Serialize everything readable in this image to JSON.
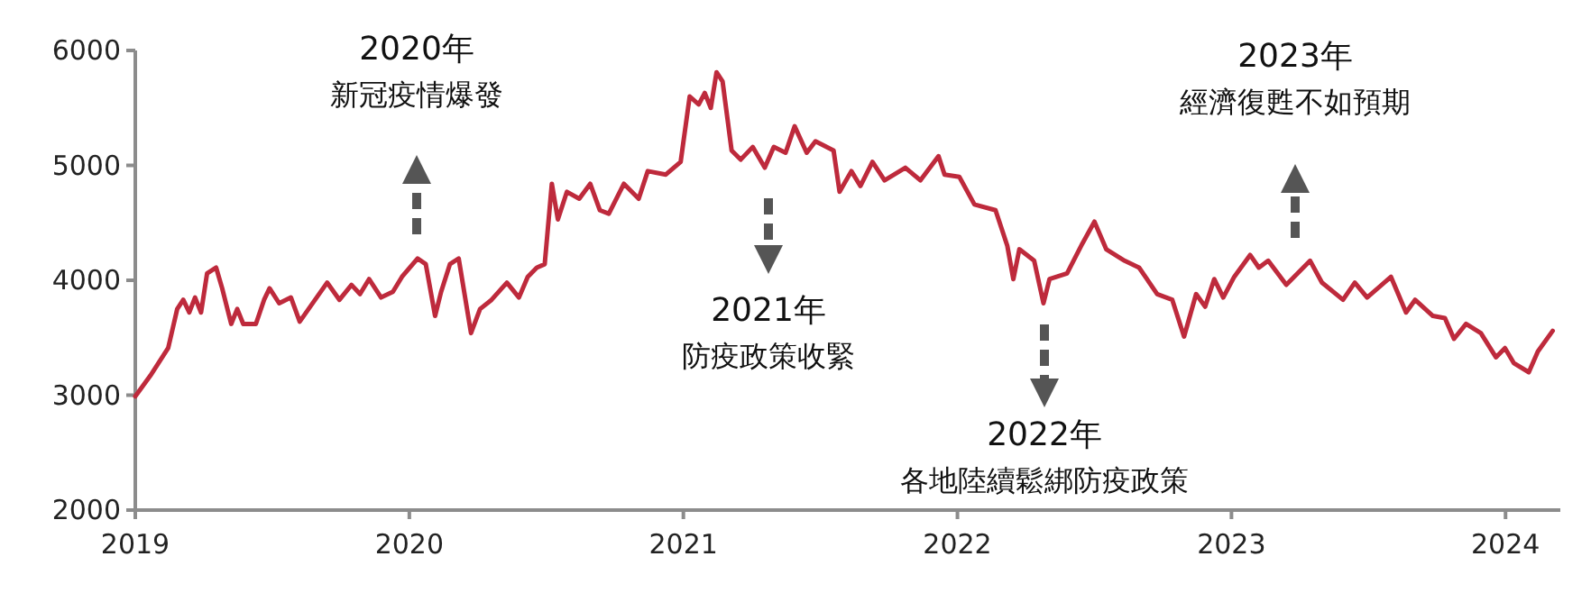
{
  "chart_data": {
    "type": "line",
    "xlim": [
      2019,
      2024.2
    ],
    "ylim": [
      2000,
      6000
    ],
    "xticks": [
      2019,
      2020,
      2021,
      2022,
      2023,
      2024
    ],
    "yticks": [
      2000,
      3000,
      4000,
      5000,
      6000
    ],
    "grid": false,
    "marker": "none",
    "line_style": "solid",
    "annotations": [
      "2020年",
      "新冠疫情爆發",
      "2021年",
      "防疫政策收緊",
      "2022年",
      "各地陸續鬆綁防疫政策",
      "2023年",
      "經濟復甦不如預期"
    ],
    "series": [
      {
        "color": "#be2a3c",
        "x": [
          2019.0,
          2019.055,
          2019.12,
          2019.153,
          2019.175,
          2019.197,
          2019.218,
          2019.24,
          2019.262,
          2019.295,
          2019.317,
          2019.35,
          2019.372,
          2019.394,
          2019.44,
          2019.47,
          2019.49,
          2019.525,
          2019.568,
          2019.6,
          2019.656,
          2019.7,
          2019.745,
          2019.789,
          2019.82,
          2019.853,
          2019.897,
          2019.94,
          2019.973,
          2020.03,
          2020.06,
          2020.094,
          2020.116,
          2020.148,
          2020.18,
          2020.225,
          2020.258,
          2020.3,
          2020.356,
          2020.4,
          2020.432,
          2020.465,
          2020.494,
          2020.52,
          2020.542,
          2020.575,
          2020.62,
          2020.66,
          2020.695,
          2020.728,
          2020.783,
          2020.837,
          2020.87,
          2020.936,
          2020.99,
          2021.023,
          2021.056,
          2021.078,
          2021.1,
          2021.121,
          2021.143,
          2021.176,
          2021.209,
          2021.253,
          2021.297,
          2021.33,
          2021.373,
          2021.406,
          2021.45,
          2021.482,
          2021.548,
          2021.57,
          2021.613,
          2021.646,
          2021.69,
          2021.734,
          2021.81,
          2021.865,
          2021.931,
          2021.953,
          2022.007,
          2022.062,
          2022.139,
          2022.182,
          2022.204,
          2022.226,
          2022.28,
          2022.314,
          2022.336,
          2022.4,
          2022.456,
          2022.5,
          2022.543,
          2022.61,
          2022.663,
          2022.729,
          2022.784,
          2022.827,
          2022.871,
          2022.904,
          2022.937,
          2022.97,
          2023.01,
          2023.068,
          2023.1,
          2023.134,
          2023.2,
          2023.287,
          2023.33,
          2023.407,
          2023.45,
          2023.495,
          2023.582,
          2023.637,
          2023.67,
          2023.735,
          2023.779,
          2023.812,
          2023.856,
          2023.91,
          2023.965,
          2023.998,
          2024.03,
          2024.085,
          2024.118,
          2024.172
        ],
        "values": [
          2990,
          3170,
          3410,
          3750,
          3830,
          3720,
          3850,
          3720,
          4060,
          4110,
          3930,
          3620,
          3750,
          3620,
          3620,
          3830,
          3930,
          3800,
          3850,
          3640,
          3830,
          3980,
          3830,
          3960,
          3880,
          4010,
          3850,
          3900,
          4030,
          4190,
          4140,
          3690,
          3900,
          4140,
          4190,
          3540,
          3750,
          3830,
          3980,
          3850,
          4030,
          4110,
          4140,
          4840,
          4530,
          4770,
          4710,
          4840,
          4610,
          4580,
          4840,
          4710,
          4950,
          4920,
          5030,
          5600,
          5530,
          5630,
          5500,
          5810,
          5730,
          5130,
          5050,
          5160,
          4980,
          5160,
          5110,
          5340,
          5110,
          5210,
          5130,
          4770,
          4950,
          4820,
          5030,
          4870,
          4980,
          4870,
          5080,
          4920,
          4900,
          4660,
          4610,
          4300,
          4010,
          4270,
          4170,
          3800,
          4010,
          4060,
          4320,
          4510,
          4270,
          4170,
          4110,
          3880,
          3830,
          3510,
          3880,
          3770,
          4010,
          3850,
          4030,
          4220,
          4110,
          4170,
          3960,
          4170,
          3980,
          3830,
          3980,
          3850,
          4030,
          3720,
          3830,
          3690,
          3670,
          3490,
          3620,
          3540,
          3330,
          3410,
          3280,
          3200,
          3380,
          3560
        ]
      }
    ]
  }
}
